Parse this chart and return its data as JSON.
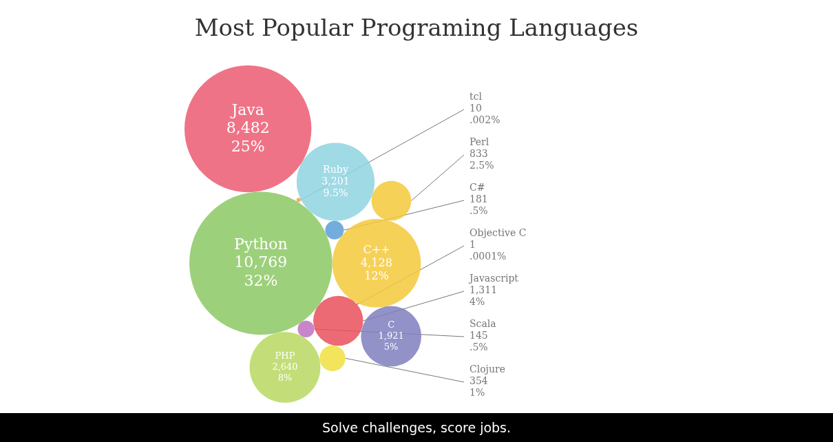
{
  "chart_data": {
    "type": "other",
    "title": "Most Popular Programing Languages",
    "categories": [
      "Python",
      "C++",
      "Javascript",
      "C#",
      "Ruby",
      "Scala",
      "Perl",
      "tcl",
      "PHP",
      "Objective C",
      "Java",
      "Clojure",
      "C"
    ],
    "series": [
      {
        "values": [
          10769,
          4128,
          1311,
          181,
          3201,
          145,
          833,
          10,
          2640,
          1,
          8482,
          354,
          1921
        ],
        "value_labels": [
          "10,769",
          "4,128",
          "1,311",
          "181",
          "3,201",
          "145",
          "833",
          "10",
          "2,640",
          "1",
          "8,482",
          "354",
          "1,921"
        ],
        "colors": [
          "#8cc864",
          "#f5c93a",
          "#e8505b",
          "#5a9fd8",
          "#8fd3e0",
          "#c070c0",
          "#f5c93a",
          "#f5a050",
          "#b8d860",
          "#555555",
          "#ec5a72",
          "#f0e040",
          "#7f7fc0"
        ]
      },
      {
        "values": [
          32,
          12,
          4,
          0.5,
          9.5,
          0.5,
          2.5,
          0.002,
          8,
          0.0001,
          25,
          1,
          5
        ],
        "value_labels": [
          "32%",
          "12%",
          "4%",
          ".5%",
          "9.5%",
          ".5%",
          "2.5%",
          ".002%",
          "8%",
          ".0001%",
          "25%",
          "1%",
          "5%"
        ]
      }
    ],
    "annotations": [
      "Solve challenges, score jobs."
    ]
  }
}
